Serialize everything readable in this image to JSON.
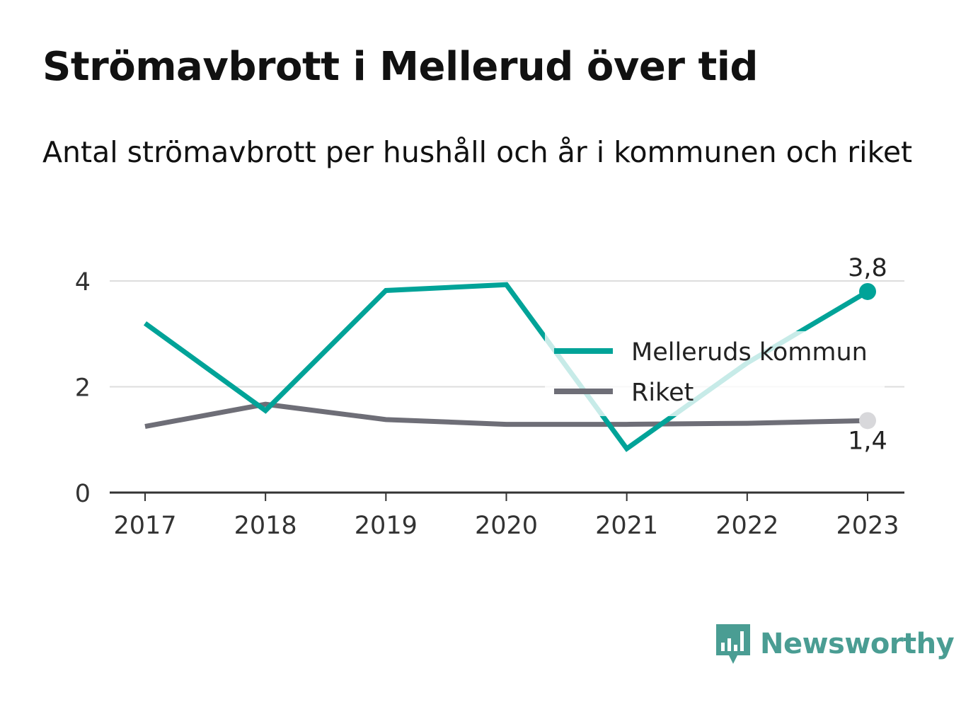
{
  "title": "Strömavbrott i Mellerud över tid",
  "subtitle": "Antal strömavbrott per hushåll och år i kommunen och riket",
  "brand": {
    "name": "Newsworthy",
    "icon": "newsworthy-logo-icon",
    "color": "#4a9d93"
  },
  "chart_data": {
    "type": "line",
    "categories": [
      "2017",
      "2018",
      "2019",
      "2020",
      "2021",
      "2022",
      "2023"
    ],
    "ylim": [
      0,
      4
    ],
    "yticks": [
      "0",
      "2",
      "4"
    ],
    "grid": true,
    "legend_position": "right",
    "series": [
      {
        "name": "Melleruds kommun",
        "color": "#00a398",
        "values": [
          3.2,
          1.55,
          3.82,
          3.93,
          0.83,
          2.45,
          3.8
        ],
        "end_label": "3,8"
      },
      {
        "name": "Riket",
        "color": "#6e6e77",
        "values": [
          1.25,
          1.67,
          1.38,
          1.29,
          1.29,
          1.31,
          1.36
        ],
        "end_label": "1,4"
      }
    ]
  }
}
